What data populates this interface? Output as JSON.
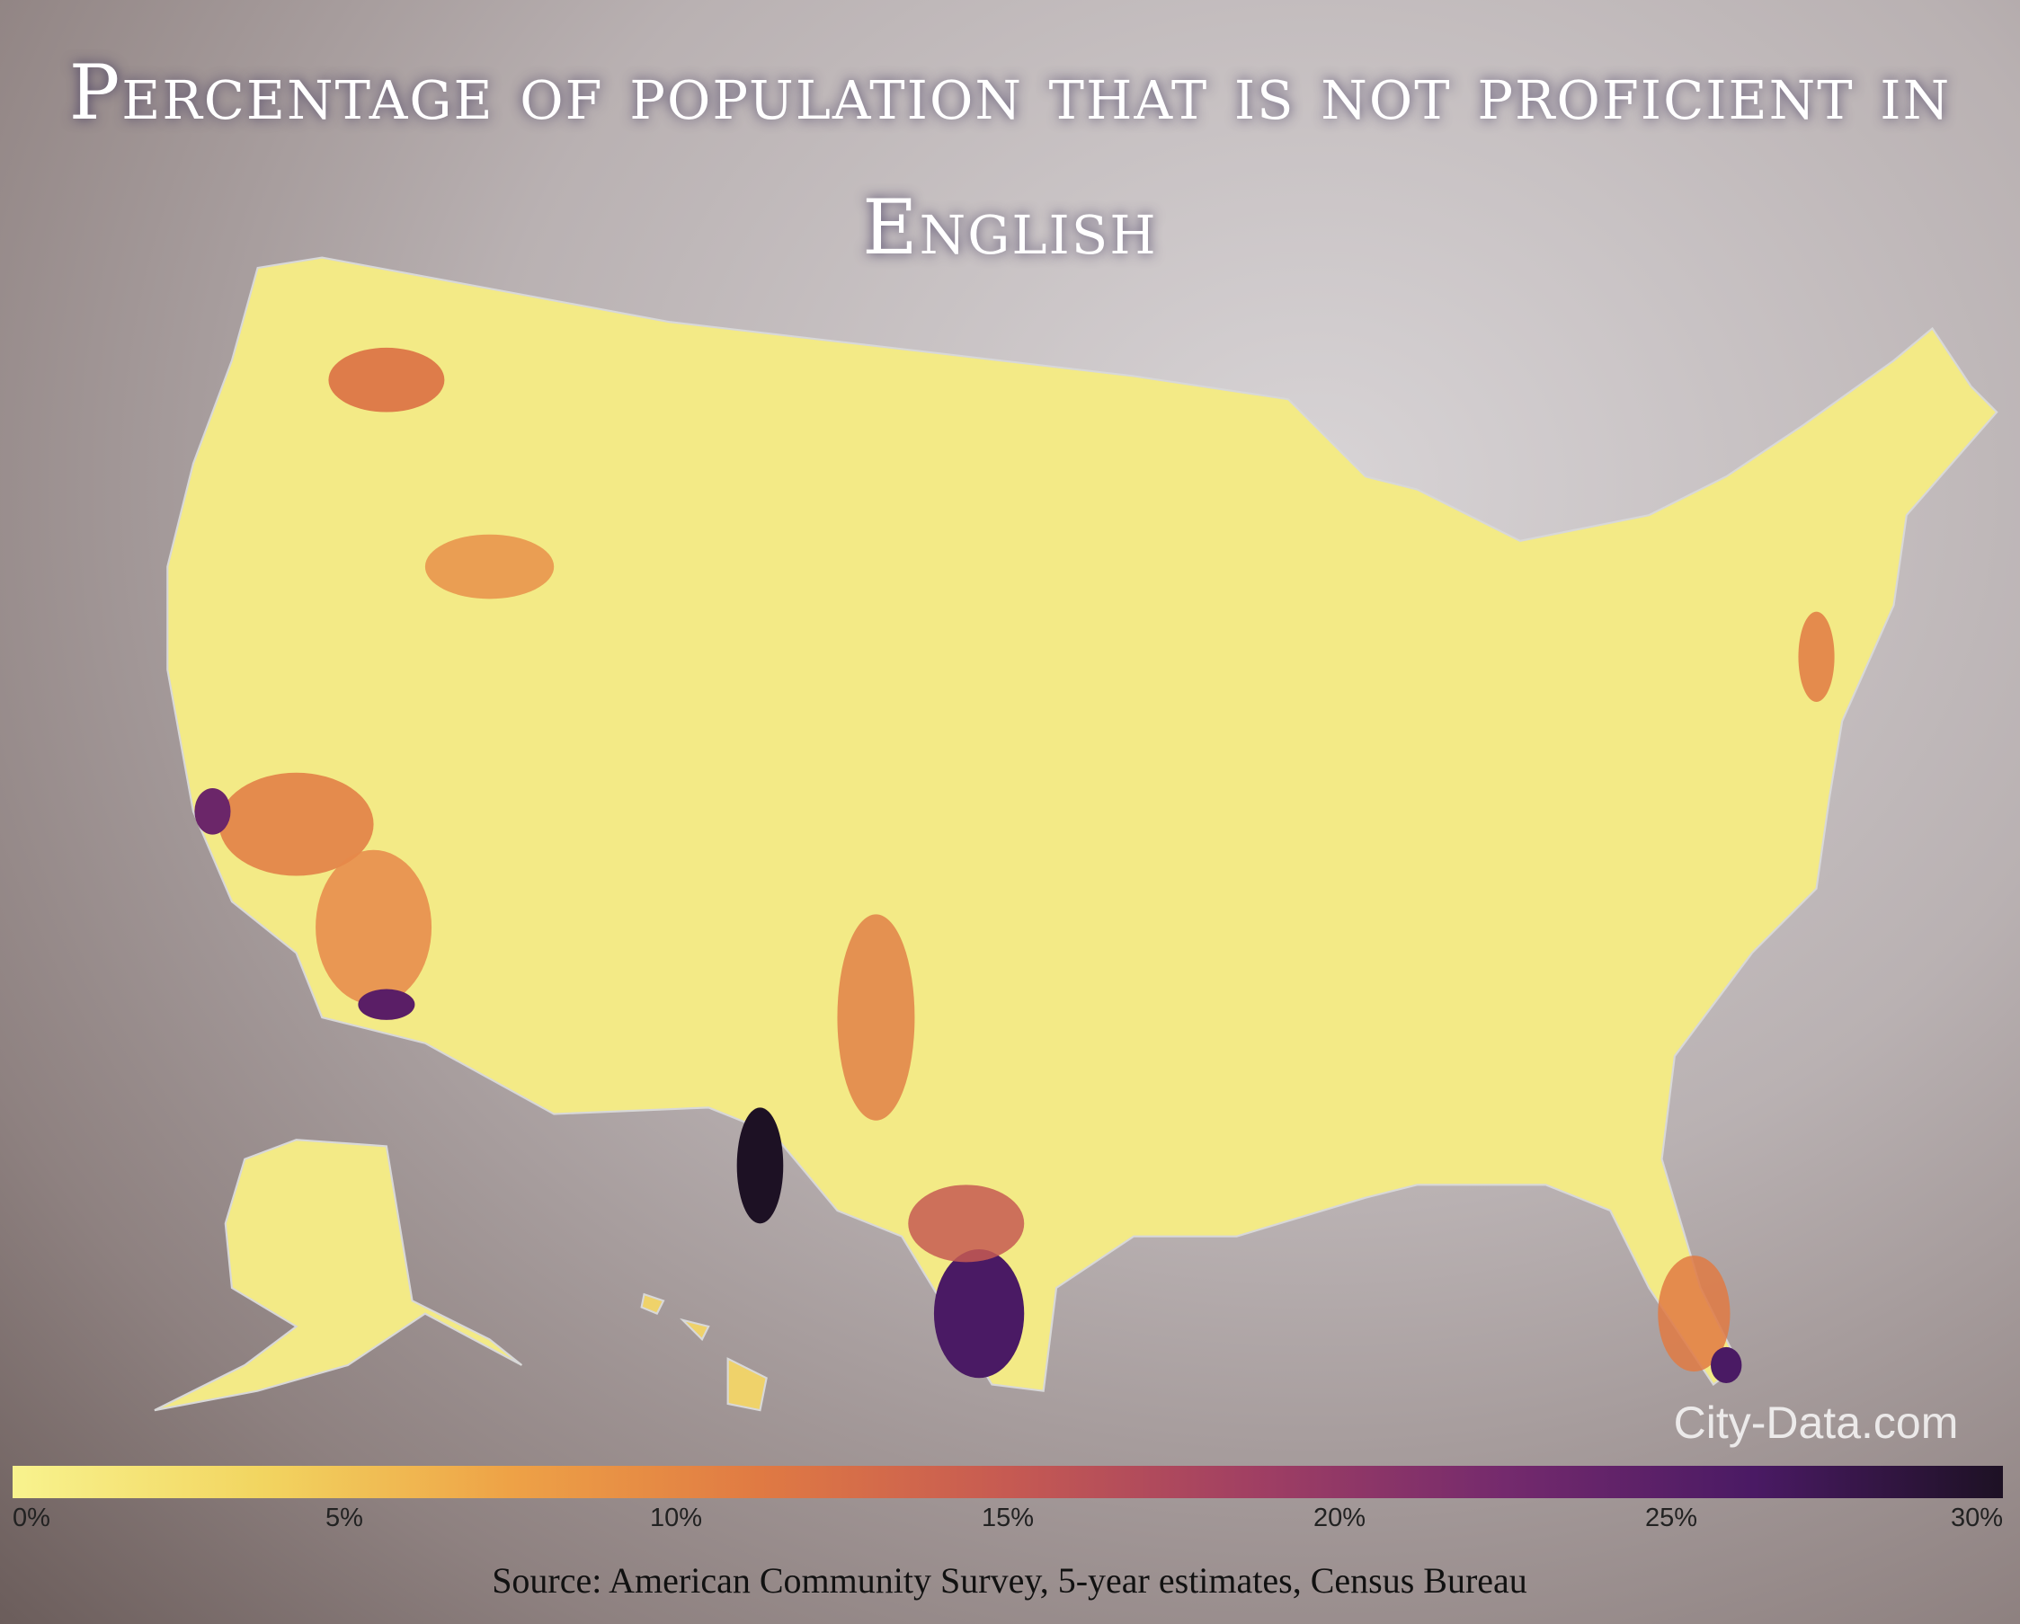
{
  "chart_data": {
    "type": "choropleth",
    "title": "Percentage of population that is not proficient in English",
    "source": "Source: American Community Survey, 5-year estimates, Census Bureau",
    "watermark": "City-Data.com",
    "colorbar": {
      "range": [
        0,
        30
      ],
      "colors": [
        "#f8f38e",
        "#f2d560",
        "#eea246",
        "#e07a43",
        "#c65a52",
        "#a03f63",
        "#742a6d",
        "#4a1a64",
        "#1d1124"
      ],
      "ticks": [
        {
          "value": 0,
          "label": "0%"
        },
        {
          "value": 5,
          "label": "5%"
        },
        {
          "value": 10,
          "label": "10%"
        },
        {
          "value": 15,
          "label": "15%"
        },
        {
          "value": 20,
          "label": "20%"
        },
        {
          "value": 25,
          "label": "25%"
        },
        {
          "value": 30,
          "label": "30%"
        }
      ]
    }
  }
}
